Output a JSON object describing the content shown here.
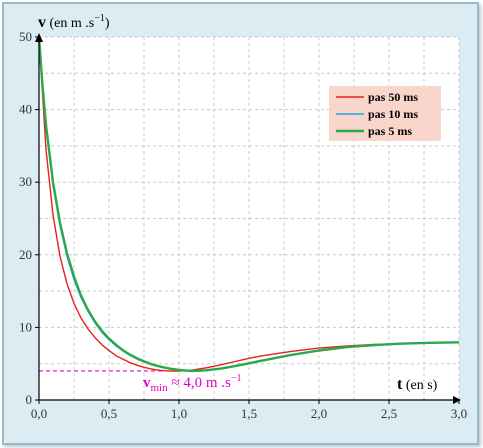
{
  "chart_data": {
    "type": "line",
    "ylabel_bold": "v",
    "ylabel_unit": " (en m .s",
    "ylabel_exp": "−1",
    "ylabel_close": ")",
    "xlabel_bold": "t",
    "xlabel_unit": " (en s)",
    "xlim": [
      0,
      3
    ],
    "ylim": [
      0,
      50
    ],
    "x_ticks": [
      "0,0",
      "0,5",
      "1,0",
      "1,5",
      "2,0",
      "2,5",
      "3,0"
    ],
    "y_ticks": [
      "0",
      "10",
      "20",
      "30",
      "40",
      "50"
    ],
    "grid": true,
    "legend_position": "top-right",
    "series": [
      {
        "name": "pas 50 ms",
        "color": "#e8201c",
        "x": [
          0,
          0.05,
          0.1,
          0.15,
          0.2,
          0.25,
          0.3,
          0.35,
          0.4,
          0.45,
          0.5,
          0.55,
          0.6,
          0.65,
          0.7,
          0.75,
          0.8,
          0.85,
          0.9,
          0.95,
          1.0,
          1.05,
          1.1,
          1.2,
          1.3,
          1.4,
          1.5,
          1.6,
          1.8,
          2.0,
          2.2,
          2.4,
          2.6,
          2.8,
          3.0
        ],
        "y": [
          50,
          34.5,
          25.5,
          19.8,
          16.0,
          13.3,
          11.3,
          9.8,
          8.6,
          7.6,
          6.8,
          6.1,
          5.6,
          5.15,
          4.8,
          4.5,
          4.28,
          4.12,
          4.02,
          3.98,
          4.0,
          4.05,
          4.15,
          4.45,
          4.85,
          5.3,
          5.75,
          6.1,
          6.7,
          7.15,
          7.45,
          7.65,
          7.8,
          7.9,
          7.95
        ]
      },
      {
        "name": "pas 10 ms",
        "color": "#1aa6e8",
        "x": [
          0,
          0.025,
          0.05,
          0.1,
          0.15,
          0.2,
          0.25,
          0.3,
          0.35,
          0.4,
          0.45,
          0.5,
          0.55,
          0.6,
          0.65,
          0.7,
          0.75,
          0.8,
          0.85,
          0.9,
          0.95,
          1.0,
          1.05,
          1.1,
          1.15,
          1.2,
          1.3,
          1.4,
          1.5,
          1.6,
          1.8,
          2.0,
          2.2,
          2.4,
          2.6,
          2.8,
          3.0
        ],
        "y": [
          50,
          43.0,
          37.5,
          29.6,
          24.0,
          19.8,
          16.6,
          14.1,
          12.2,
          10.6,
          9.3,
          8.3,
          7.45,
          6.75,
          6.15,
          5.65,
          5.25,
          4.9,
          4.62,
          4.4,
          4.22,
          4.1,
          4.03,
          4.0,
          4.03,
          4.1,
          4.35,
          4.7,
          5.1,
          5.5,
          6.25,
          6.85,
          7.3,
          7.6,
          7.78,
          7.88,
          7.95
        ]
      },
      {
        "name": "pas 5 ms",
        "color": "#2aa84a",
        "x": [
          0,
          0.025,
          0.05,
          0.1,
          0.15,
          0.2,
          0.25,
          0.3,
          0.35,
          0.4,
          0.45,
          0.5,
          0.55,
          0.6,
          0.65,
          0.7,
          0.75,
          0.8,
          0.85,
          0.9,
          0.95,
          1.0,
          1.05,
          1.1,
          1.15,
          1.2,
          1.3,
          1.4,
          1.5,
          1.6,
          1.8,
          2.0,
          2.2,
          2.4,
          2.6,
          2.8,
          3.0
        ],
        "y": [
          50,
          43.3,
          37.9,
          30.0,
          24.4,
          20.2,
          17.0,
          14.4,
          12.4,
          10.8,
          9.5,
          8.45,
          7.6,
          6.85,
          6.25,
          5.75,
          5.32,
          4.96,
          4.68,
          4.45,
          4.27,
          4.13,
          4.05,
          4.01,
          4.03,
          4.1,
          4.33,
          4.67,
          5.06,
          5.46,
          6.2,
          6.82,
          7.28,
          7.58,
          7.77,
          7.88,
          7.95
        ]
      }
    ],
    "annotation": {
      "label_main": "v",
      "label_sub": "min",
      "label_text": " ≈ 4,0 m .s",
      "label_exp": "−1",
      "x": 1.05,
      "y": 4.0,
      "color": "#e600c8"
    },
    "legend_bg": "#f8d6cc"
  }
}
